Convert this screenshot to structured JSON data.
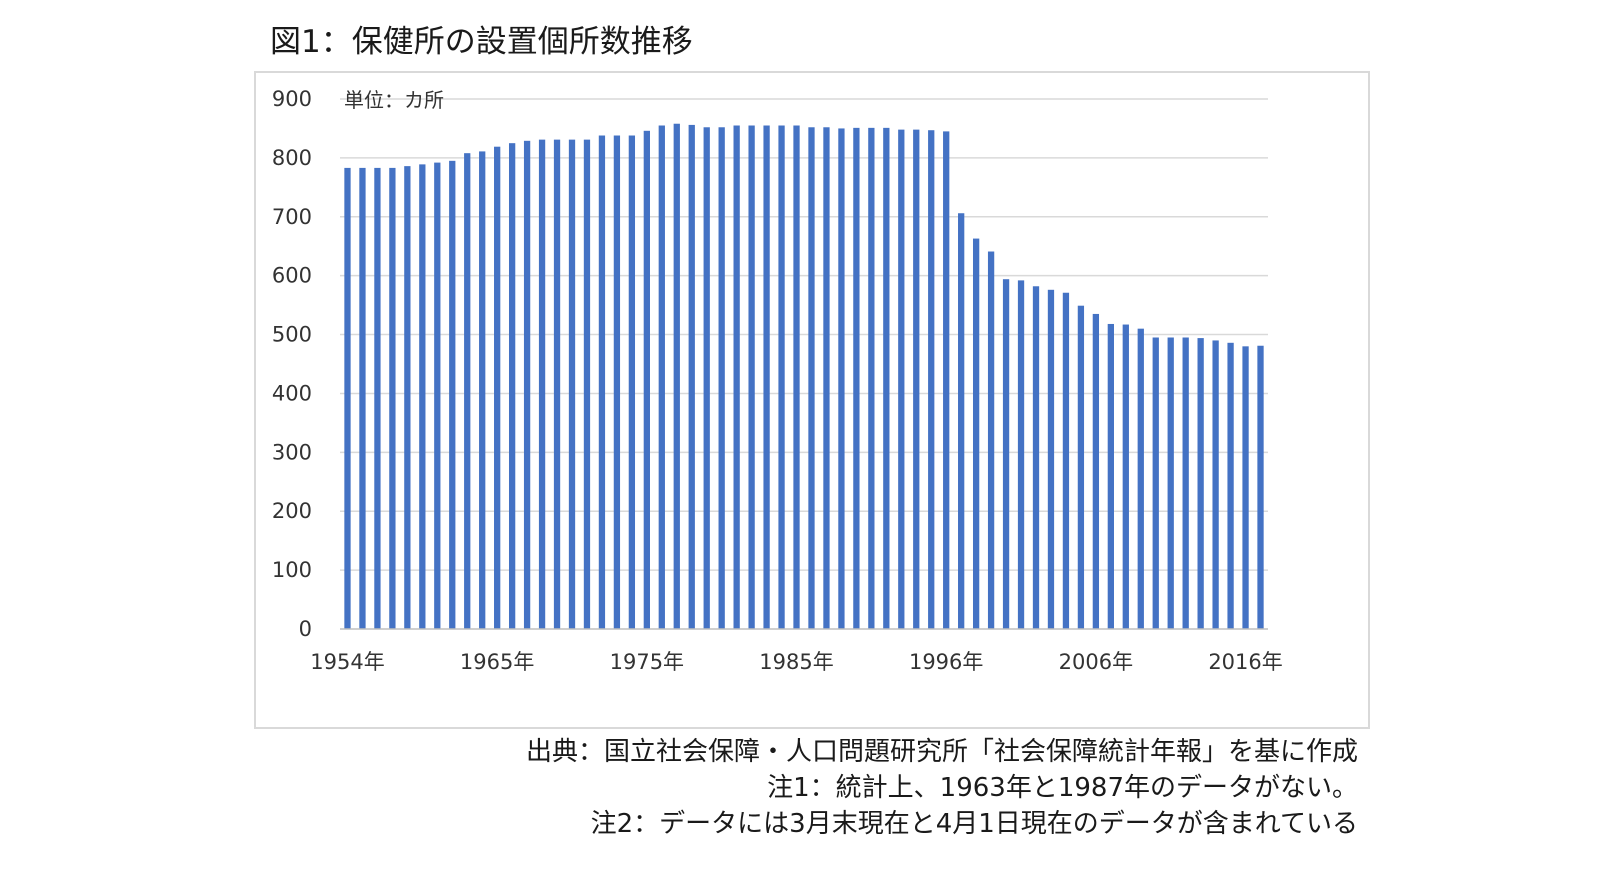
{
  "figure": {
    "title": "図1：保健所の設置個所数推移",
    "unit_label": "単位：カ所",
    "source": "出典：国立社会保障・人口問題研究所「社会保障統計年報」を基に作成",
    "note1": "注1：統計上、1963年と1987年のデータがない。",
    "note2": "注2：データには3月末現在と4月1日現在のデータが含まれている"
  },
  "colors": {
    "bar": "#4472c4",
    "grid": "#d9d9d9",
    "axis": "#bfbfbf",
    "tick_text": "#333333"
  },
  "chart_data": {
    "type": "bar",
    "title": "図1：保健所の設置個所数推移",
    "unit_label": "単位：カ所",
    "ylim": [
      0,
      900
    ],
    "yticks": [
      0,
      100,
      200,
      300,
      400,
      500,
      600,
      700,
      800,
      900
    ],
    "grid": true,
    "legend": "none",
    "xtick_labels": [
      "1954年",
      "1965年",
      "1975年",
      "1985年",
      "1996年",
      "2006年",
      "2016年"
    ],
    "xtick_category_indices": [
      0,
      10,
      20,
      30,
      40,
      50,
      60
    ],
    "categories": [
      "1954年",
      "1955年",
      "1956年",
      "1957年",
      "1958年",
      "1959年",
      "1960年",
      "1961年",
      "1962年",
      "1964年",
      "1965年",
      "1966年",
      "1967年",
      "1968年",
      "1969年",
      "1970年",
      "1971年",
      "1972年",
      "1973年",
      "1974年",
      "1975年",
      "1976年",
      "1977年",
      "1978年",
      "1979年",
      "1980年",
      "1981年",
      "1982年",
      "1983年",
      "1984年",
      "1985年",
      "1986年",
      "1988年",
      "1989年",
      "1990年",
      "1991年",
      "1992年",
      "1993年",
      "1994年",
      "1995年",
      "1996年",
      "1997年",
      "1998年",
      "1999年",
      "2000年",
      "2001年",
      "2002年",
      "2003年",
      "2004年",
      "2005年",
      "2006年",
      "2007年",
      "2008年",
      "2009年",
      "2010年",
      "2011年",
      "2012年",
      "2013年",
      "2014年",
      "2015年",
      "2016年",
      "2017年"
    ],
    "values": [
      783,
      783,
      783,
      783,
      786,
      789,
      792,
      795,
      808,
      811,
      819,
      825,
      829,
      831,
      831,
      831,
      831,
      838,
      838,
      838,
      846,
      855,
      858,
      856,
      852,
      852,
      855,
      855,
      855,
      855,
      855,
      852,
      852,
      850,
      851,
      851,
      851,
      848,
      848,
      847,
      845,
      706,
      663,
      641,
      594,
      592,
      582,
      576,
      571,
      549,
      535,
      518,
      517,
      510,
      495,
      495,
      495,
      494,
      490,
      486,
      480,
      481
    ]
  }
}
